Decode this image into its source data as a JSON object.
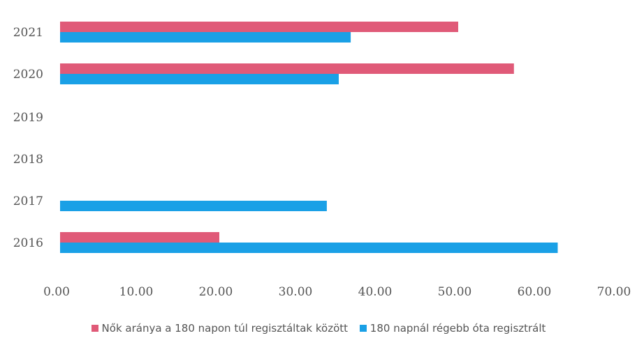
{
  "chart_data": {
    "type": "bar",
    "orientation": "horizontal",
    "categories": [
      "2016",
      "2017",
      "2018",
      "2019",
      "2020",
      "2021"
    ],
    "series": [
      {
        "name": "Nők aránya a 180 napon túl regisztáltak között",
        "color": "#e05a78",
        "values": [
          20.0,
          null,
          null,
          null,
          57.0,
          50.0
        ]
      },
      {
        "name": "180 napnál régebb óta regisztrált",
        "color": "#1aa0e6",
        "values": [
          62.5,
          33.5,
          null,
          null,
          35.0,
          36.5
        ]
      }
    ],
    "xticks": [
      "0.00",
      "10.00",
      "20.00",
      "30.00",
      "40.00",
      "50.00",
      "60.00",
      "70.00"
    ],
    "xlim": [
      0,
      70
    ],
    "grid": false,
    "legend_position": "bottom"
  }
}
